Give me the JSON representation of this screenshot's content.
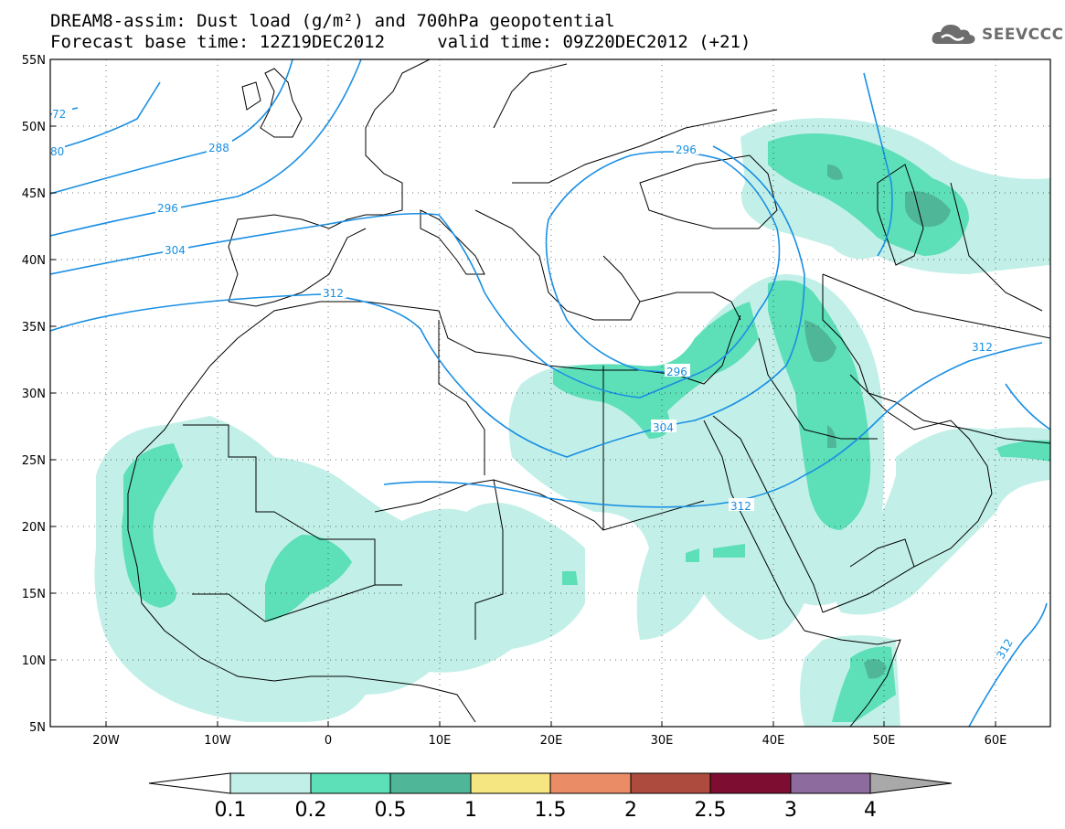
{
  "title_line1": "DREAM8-assim: Dust load (g/m²) and 700hPa geopotential",
  "title_line2": "Forecast base time: 12Z19DEC2012     valid time: 09Z20DEC2012 (+21)",
  "logo": {
    "icon": "cloud-icon",
    "text": "SEEVCCC"
  },
  "colors": {
    "geopotential": "#1a8fe3",
    "border": "#000000",
    "dust_levels": [
      "#c2f0e8",
      "#5ddfb8",
      "#50b698",
      "#f5e681",
      "#ea8d66",
      "#ad4b3f",
      "#7d0e31",
      "#8d6b9e"
    ]
  },
  "map": {
    "lat_labels": [
      "55N",
      "50N",
      "45N",
      "40N",
      "35N",
      "30N",
      "25N",
      "20N",
      "15N",
      "10N",
      "5N"
    ],
    "lon_labels": [
      "20W",
      "10W",
      "0",
      "10E",
      "20E",
      "30E",
      "40E",
      "50E",
      "60E"
    ],
    "contour_labels": [
      "72",
      "80",
      "288",
      "296",
      "304",
      "312",
      "296",
      "296",
      "304",
      "312",
      "312",
      "312"
    ]
  },
  "colorbar": {
    "labels": [
      "0.1",
      "0.2",
      "0.5",
      "1",
      "1.5",
      "2",
      "2.5",
      "3",
      "4"
    ]
  }
}
